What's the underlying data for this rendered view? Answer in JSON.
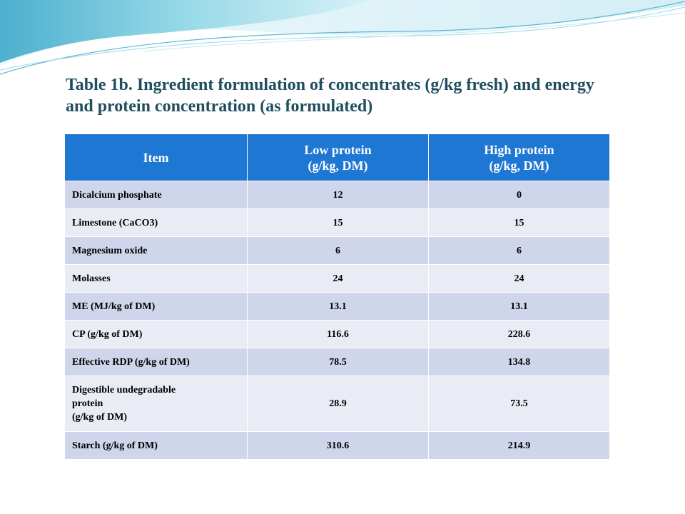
{
  "title": "Table 1b. Ingredient formulation of concentrates (g/kg fresh) and energy and protein concentration (as formulated)",
  "table": {
    "headers": [
      [
        "Item"
      ],
      [
        "Low protein",
        "(g/kg, DM)"
      ],
      [
        "High protein",
        "(g/kg, DM)"
      ]
    ],
    "rows": [
      {
        "item": "Dicalcium phosphate",
        "low": "12",
        "high": "0"
      },
      {
        "item": "Limestone (CaCO3)",
        "low": "15",
        "high": "15"
      },
      {
        "item": "Magnesium oxide",
        "low": "6",
        "high": "6"
      },
      {
        "item": "Molasses",
        "low": "24",
        "high": "24"
      },
      {
        "item": "ME (MJ/kg of DM)",
        "low": "13.1",
        "high": "13.1"
      },
      {
        "item": "CP (g/kg of DM)",
        "low": "116.6",
        "high": "228.6"
      },
      {
        "item": "Effective RDP (g/kg of DM)",
        "low": "78.5",
        "high": "134.8"
      },
      {
        "item_lines": [
          "Digestible undegradable",
          "protein",
          "(g/kg of DM)"
        ],
        "low": "28.9",
        "high": "73.5"
      },
      {
        "item": "Starch (g/kg of DM)",
        "low": "310.6",
        "high": "214.9"
      }
    ]
  },
  "colors": {
    "header_bg": "#1f77d4",
    "row_odd": "#cfd5ea",
    "row_even": "#e9ebf5",
    "title_text": "#1f4e5f",
    "wave_teal": "#8fd6e6"
  }
}
